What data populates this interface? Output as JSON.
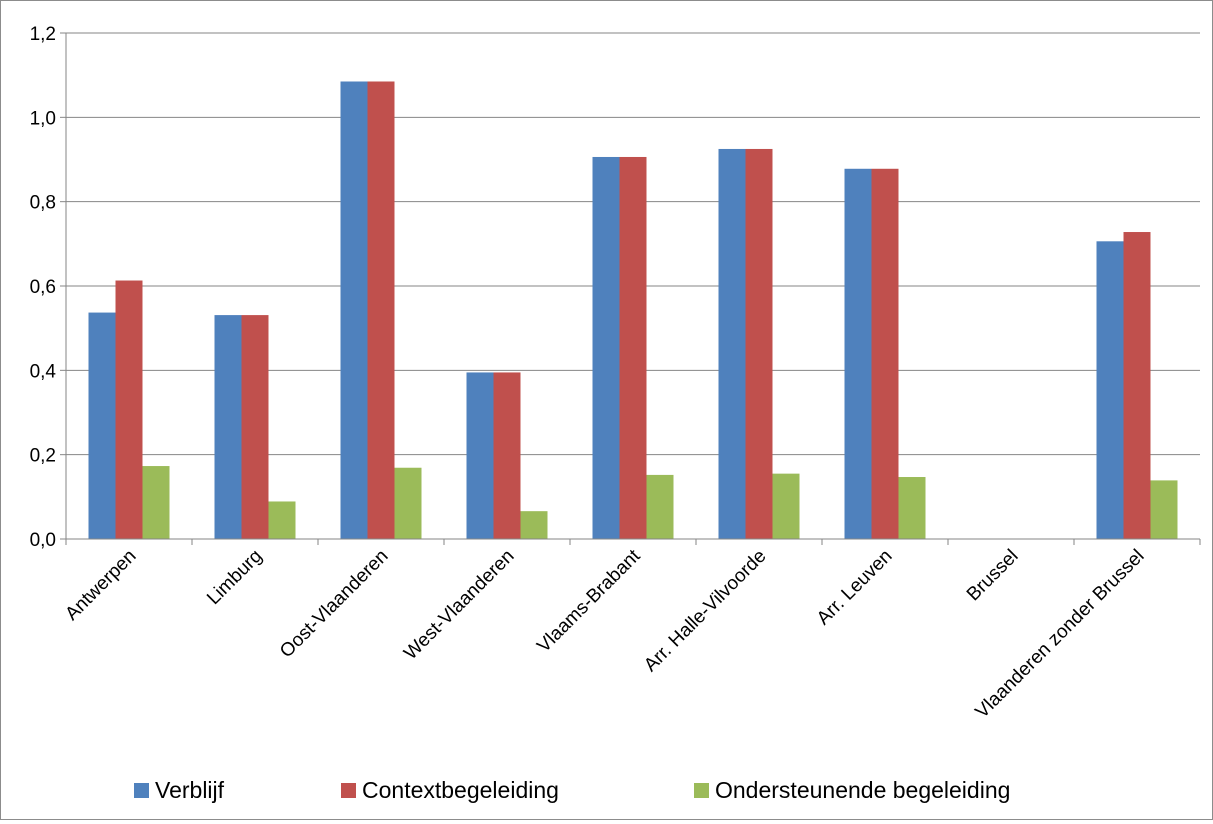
{
  "chart_data": {
    "type": "bar",
    "title": "",
    "xlabel": "",
    "ylabel": "",
    "ylim": [
      0,
      1.2
    ],
    "yticks": [
      "0,0",
      "0,2",
      "0,4",
      "0,6",
      "0,8",
      "1,0",
      "1,2"
    ],
    "ytick_values": [
      0,
      0.2,
      0.4,
      0.6,
      0.8,
      1.0,
      1.2
    ],
    "grid": true,
    "legend_position": "bottom",
    "categories": [
      "Antwerpen",
      "Limburg",
      "Oost-Vlaanderen",
      "West-Vlaanderen",
      "Vlaams-Brabant",
      "Arr. Halle-Vilvoorde",
      "Arr. Leuven",
      "Brussel",
      "Vlaanderen zonder Brussel"
    ],
    "series": [
      {
        "name": "Verblijf",
        "color": "#4f81bd",
        "values": [
          0.537,
          0.531,
          1.085,
          0.395,
          0.906,
          0.925,
          0.878,
          0,
          0.706
        ]
      },
      {
        "name": "Contextbegeleiding",
        "color": "#c0504d",
        "values": [
          0.613,
          0.531,
          1.085,
          0.395,
          0.906,
          0.925,
          0.878,
          0,
          0.728
        ]
      },
      {
        "name": "Ondersteunende begeleiding",
        "color": "#9bbb59",
        "values": [
          0.173,
          0.089,
          0.169,
          0.066,
          0.152,
          0.155,
          0.147,
          0,
          0.139
        ]
      }
    ]
  }
}
